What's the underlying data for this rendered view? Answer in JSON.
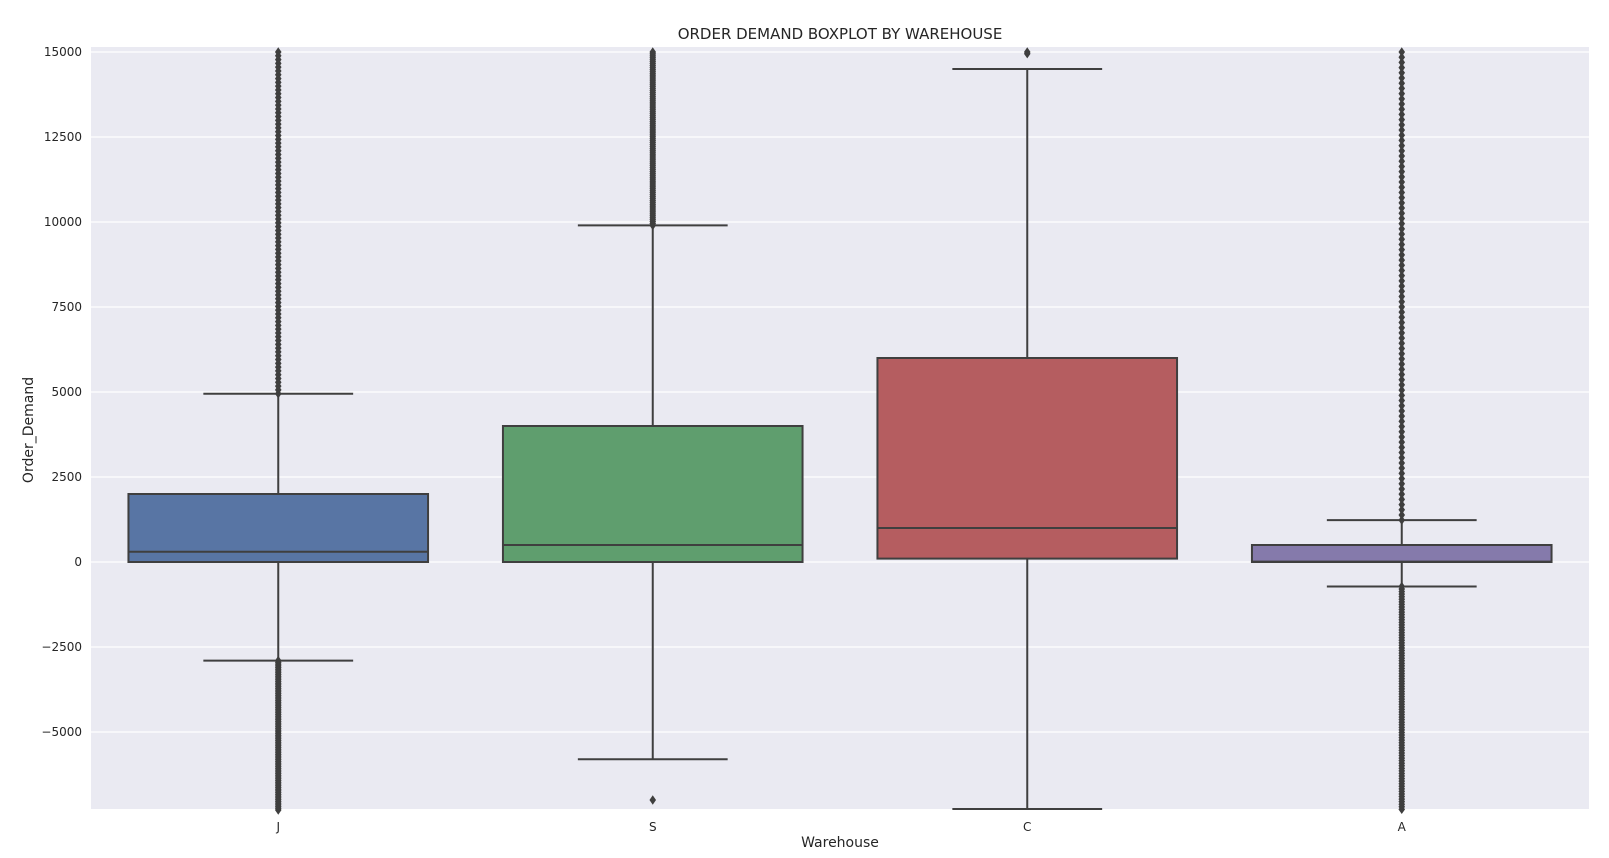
{
  "chart_data": {
    "type": "box",
    "title": "ORDER DEMAND BOXPLOT BY WAREHOUSE",
    "xlabel": "Warehouse",
    "ylabel": "Order_Demand",
    "ylim": [
      -7500,
      15000
    ],
    "yticks": [
      -5000,
      -2500,
      0,
      2500,
      5000,
      7500,
      10000,
      12500,
      15000
    ],
    "ytick_labels": [
      "−5000",
      "−2500",
      "0",
      "2500",
      "5000",
      "7500",
      "10000",
      "12500",
      "15000"
    ],
    "grid": true,
    "categories": [
      "J",
      "S",
      "C",
      "A"
    ],
    "boxes": [
      {
        "category": "J",
        "color": "#5875a4",
        "whisker_low": -2900,
        "q1": 0,
        "median": 300,
        "q3": 2000,
        "whisker_high": 4950,
        "outliers_high_range": [
          4950,
          15000
        ],
        "outliers_low_range": [
          -7500,
          -2900
        ]
      },
      {
        "category": "S",
        "color": "#5f9e6e",
        "whisker_low": -5800,
        "q1": 0,
        "median": 500,
        "q3": 4000,
        "whisker_high": 9900,
        "outliers_high_range": [
          9900,
          15000
        ],
        "outliers_low": [
          -7000
        ]
      },
      {
        "category": "C",
        "color": "#b55d60",
        "whisker_low": -7400,
        "q1": 100,
        "median": 1000,
        "q3": 6000,
        "whisker_high": 14500,
        "outliers_high": [
          14950,
          15000
        ]
      },
      {
        "category": "A",
        "color": "#857aab",
        "whisker_low": -720,
        "q1": 0,
        "median": 10,
        "q3": 500,
        "whisker_high": 1230,
        "outliers_high_range": [
          1230,
          15000
        ],
        "outliers_low_range": [
          -7500,
          -720
        ]
      }
    ],
    "colors": {
      "background": "#eaeaf2",
      "grid": "#ffffff",
      "line": "#3f3f3f",
      "text": "#262626"
    }
  }
}
